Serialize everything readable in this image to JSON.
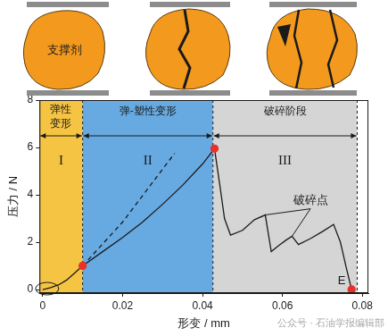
{
  "chart_data": {
    "type": "line",
    "xlabel": "形变 / mm",
    "ylabel": "压力 / N",
    "xlim": [
      -0.0008,
      0.0815
    ],
    "xticks": [
      0,
      0.02,
      0.04,
      0.06,
      0.08
    ],
    "ylim": [
      -0.15,
      8
    ],
    "yticks": [
      0,
      2,
      4,
      6,
      8
    ],
    "grid": false,
    "series": [
      {
        "color": "#1a1a1a",
        "line_style": "solid",
        "marker": "none",
        "x": [
          0,
          0.002,
          0.004,
          0.006,
          0.008,
          0.01,
          0.015,
          0.02,
          0.025,
          0.03,
          0.035,
          0.04,
          0.043,
          0.0445,
          0.0455,
          0.047,
          0.05,
          0.053,
          0.0557,
          0.0572,
          0.059,
          0.061,
          0.0624,
          0.064,
          0.067,
          0.07,
          0.0728,
          0.0745,
          0.076,
          0.0773
        ],
        "values": [
          0,
          0.08,
          0.2,
          0.4,
          0.7,
          1.0,
          1.6,
          2.2,
          2.85,
          3.6,
          4.4,
          5.3,
          5.95,
          4.2,
          3.0,
          2.3,
          2.5,
          2.95,
          3.15,
          1.6,
          1.85,
          2.1,
          2.25,
          1.9,
          2.15,
          2.45,
          2.75,
          2.0,
          0.9,
          0
        ]
      },
      {
        "color": "#1a1a1a",
        "line_style": "dashed",
        "marker": "none",
        "x": [
          0.01,
          0.02,
          0.033
        ],
        "values": [
          1.0,
          2.85,
          5.75
        ]
      },
      {
        "color": "#e8312a",
        "line_style": "none",
        "marker": "circle",
        "x": [
          0.01,
          0.043,
          0.0773
        ],
        "values": [
          1.0,
          5.95,
          0
        ]
      }
    ],
    "regions": [
      {
        "numeral": "I",
        "label": "弹性变形",
        "x": [
          -0.0008,
          0.01
        ],
        "color": "#f6c443"
      },
      {
        "numeral": "II",
        "label": "弹-塑性变形",
        "x": [
          0.01,
          0.0426
        ],
        "color": "#67aae2"
      },
      {
        "numeral": "III",
        "label": "破碎阶段",
        "x": [
          0.0426,
          0.0787
        ],
        "color": "#d5d5d5"
      }
    ],
    "annotations": [
      {
        "text": "破碎点",
        "x": 0.067,
        "y": 3.75,
        "points": [
          [
            0.0557,
            3.15
          ],
          [
            0.0624,
            2.25
          ]
        ]
      },
      {
        "text": "E",
        "x": 0.0748,
        "y": 0.38
      }
    ],
    "illustration_label": "支撑剂",
    "watermark": "公众号 · 石油学报编辑部"
  }
}
